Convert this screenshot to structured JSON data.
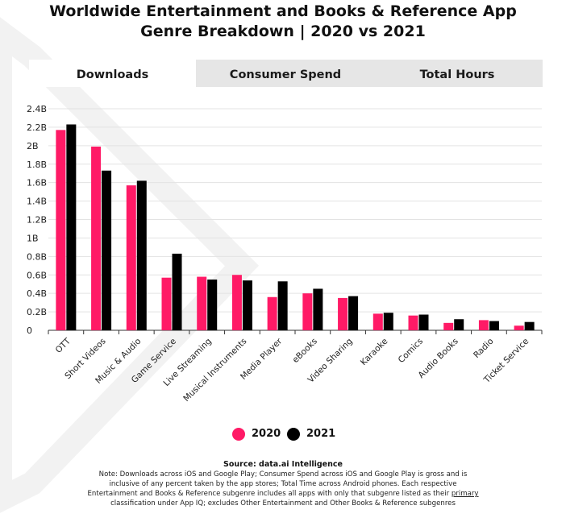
{
  "title_line1": "Worldwide Entertainment and Books & Reference App",
  "title_line2": "Genre Breakdown | 2020 vs 2021",
  "tabs": [
    {
      "label": "Downloads",
      "active": true
    },
    {
      "label": "Consumer Spend",
      "active": false
    },
    {
      "label": "Total Hours",
      "active": false
    }
  ],
  "colors": {
    "series_2020": "#ff1a66",
    "series_2021": "#000000",
    "tab_bg": "#e6e6e6"
  },
  "chart_data": {
    "type": "bar",
    "categories": [
      "OTT",
      "Short Videos",
      "Music & Audio",
      "Game Service",
      "Live Streaming",
      "Musical Instruments",
      "Media Player",
      "eBooks",
      "Video Sharing",
      "Karaoke",
      "Comics",
      "Audio Books",
      "Radio",
      "Ticket Service"
    ],
    "series": [
      {
        "name": "2020",
        "values": [
          2.17,
          1.99,
          1.57,
          0.57,
          0.58,
          0.6,
          0.36,
          0.4,
          0.35,
          0.18,
          0.16,
          0.08,
          0.11,
          0.05
        ]
      },
      {
        "name": "2021",
        "values": [
          2.23,
          1.73,
          1.62,
          0.83,
          0.55,
          0.54,
          0.53,
          0.45,
          0.37,
          0.19,
          0.17,
          0.12,
          0.1,
          0.09
        ]
      }
    ],
    "yticks": [
      "0",
      "0.2B",
      "0.4B",
      "0.6B",
      "0.8B",
      "1B",
      "1.2B",
      "1.4B",
      "1.6B",
      "1.8B",
      "2B",
      "2.2B",
      "2.4B"
    ],
    "ylim": [
      0,
      2.4
    ],
    "grid": true,
    "legend_position": "bottom-center"
  },
  "legend": [
    {
      "label": "2020"
    },
    {
      "label": "2021"
    }
  ],
  "source_text": "Source: data.ai Intelligence",
  "note": {
    "part1": "Note: Downloads across iOS and Google Play; Consumer Spend across iOS and Google Play is gross and is inclusive of any percent taken by the app stores; Total Time across Android phones. Each respective Entertainment and Books & Reference subgenre includes all apps with only that subgenre listed as their ",
    "underlined": "primary",
    "part2": " classification under App IQ; excludes Other Entertainment and Other Books & Reference subgenres"
  }
}
